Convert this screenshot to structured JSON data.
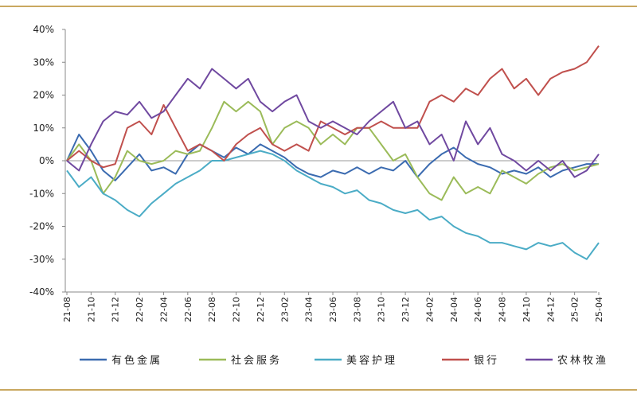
{
  "chart_data": {
    "type": "line",
    "categories": [
      "21-08",
      null,
      "21-10",
      null,
      "21-12",
      null,
      "22-02",
      null,
      "22-04",
      null,
      "22-06",
      null,
      "22-08",
      null,
      "22-10",
      null,
      "22-12",
      null,
      "23-02",
      null,
      "23-04",
      null,
      "23-06",
      null,
      "23-08",
      null,
      "23-10",
      null,
      "23-12",
      null,
      "24-02",
      null,
      "24-04",
      null,
      "24-06",
      null,
      "24-08",
      null,
      "24-10",
      null,
      "24-12",
      null,
      "25-02",
      null,
      "25-04"
    ],
    "series": [
      {
        "name": "有色金属",
        "color": "#3b6bb0",
        "values": [
          0,
          8,
          3,
          -3,
          -6,
          -2,
          2,
          -3,
          -2,
          -4,
          2,
          5,
          3,
          1,
          4,
          2,
          5,
          3,
          1,
          -2,
          -4,
          -5,
          -3,
          -4,
          -2,
          -4,
          -2,
          -3,
          0,
          -5,
          -1,
          2,
          4,
          1,
          -1,
          -2,
          -4,
          -3,
          -4,
          -2,
          -5,
          -3,
          -2,
          -1,
          -1
        ]
      },
      {
        "name": "社会服务",
        "color": "#9bbb59",
        "values": [
          0,
          5,
          0,
          -10,
          -5,
          3,
          0,
          -1,
          0,
          3,
          2,
          3,
          10,
          18,
          15,
          18,
          15,
          5,
          10,
          12,
          10,
          5,
          8,
          5,
          10,
          10,
          5,
          0,
          2,
          -5,
          -10,
          -12,
          -5,
          -10,
          -8,
          -10,
          -3,
          -5,
          -7,
          -4,
          -2,
          -1,
          -3,
          -2,
          -1
        ]
      },
      {
        "name": "美容护理",
        "color": "#4bacc6",
        "values": [
          -3,
          -8,
          -5,
          -10,
          -12,
          -15,
          -17,
          -13,
          -10,
          -7,
          -5,
          -3,
          0,
          0,
          1,
          2,
          3,
          2,
          0,
          -3,
          -5,
          -7,
          -8,
          -10,
          -9,
          -12,
          -13,
          -15,
          -16,
          -15,
          -18,
          -17,
          -20,
          -22,
          -23,
          -25,
          -25,
          -26,
          -27,
          -25,
          -26,
          -25,
          -28,
          -30,
          -25
        ]
      },
      {
        "name": "银行",
        "color": "#c0504d",
        "values": [
          0,
          3,
          0,
          -2,
          -1,
          10,
          12,
          8,
          17,
          10,
          3,
          5,
          3,
          0,
          5,
          8,
          10,
          5,
          3,
          5,
          3,
          12,
          10,
          8,
          10,
          10,
          12,
          10,
          10,
          10,
          18,
          20,
          18,
          22,
          20,
          25,
          28,
          22,
          25,
          20,
          25,
          27,
          28,
          30,
          35
        ]
      },
      {
        "name": "农林牧渔",
        "color": "#7049a0",
        "values": [
          0,
          -3,
          5,
          12,
          15,
          14,
          18,
          13,
          15,
          20,
          25,
          22,
          28,
          25,
          22,
          25,
          18,
          15,
          18,
          20,
          12,
          10,
          12,
          10,
          8,
          12,
          15,
          18,
          10,
          12,
          5,
          8,
          0,
          12,
          5,
          10,
          2,
          0,
          -3,
          0,
          -3,
          0,
          -5,
          -3,
          2
        ]
      }
    ],
    "ylim": [
      -40,
      40
    ],
    "yticks": [
      {
        "value": -40,
        "label": "-40%"
      },
      {
        "value": -30,
        "label": "-30%"
      },
      {
        "value": -20,
        "label": "-20%"
      },
      {
        "value": -10,
        "label": "-10%"
      },
      {
        "value": 0,
        "label": "0%"
      },
      {
        "value": 10,
        "label": "10%"
      },
      {
        "value": 20,
        "label": "20%"
      },
      {
        "value": 30,
        "label": "30%"
      },
      {
        "value": 40,
        "label": "40%"
      }
    ],
    "legend": "bottom"
  }
}
